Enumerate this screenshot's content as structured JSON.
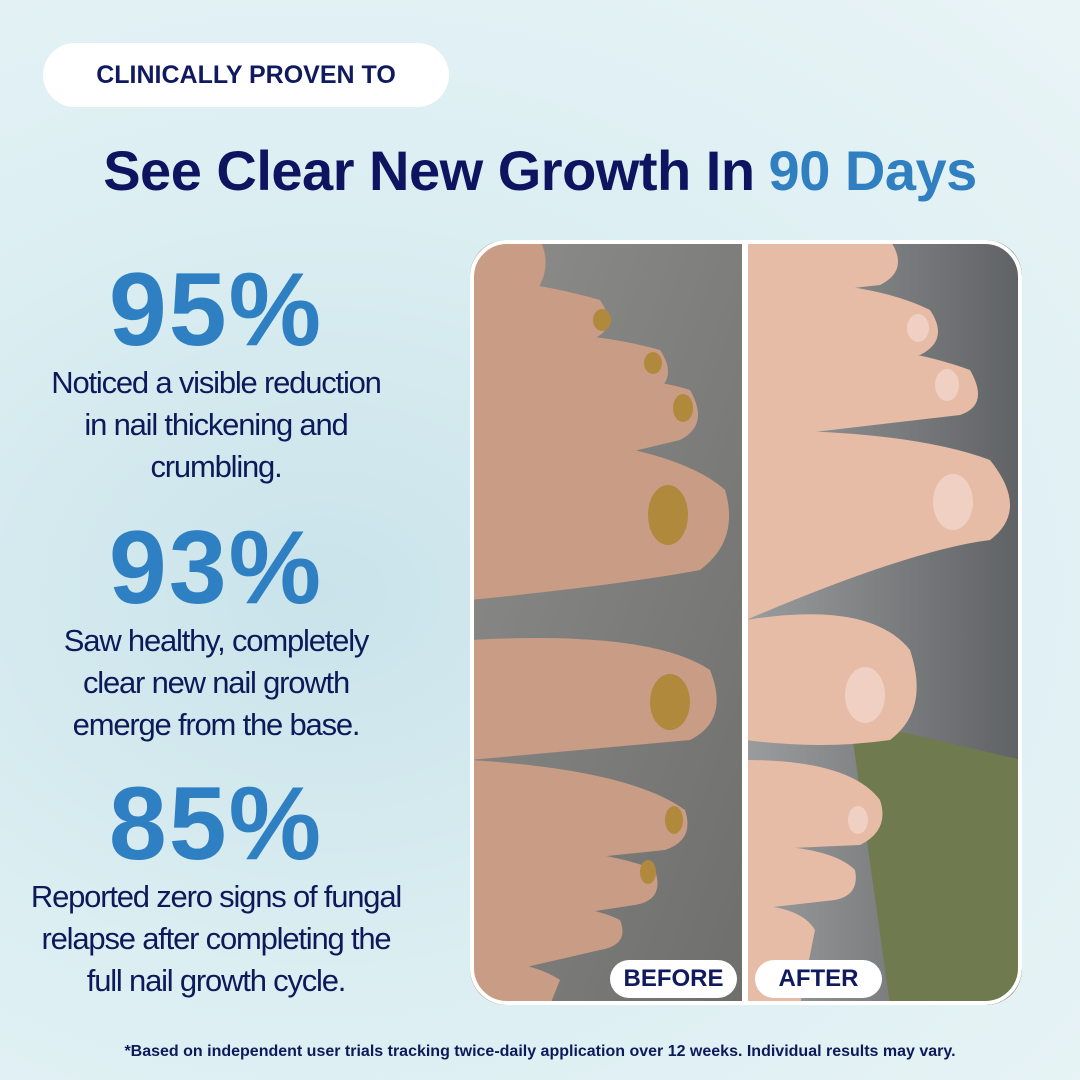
{
  "badge": "CLINICALLY PROVEN TO",
  "headline": {
    "text": "See Clear New Growth In",
    "accent": "90 Days"
  },
  "stats": [
    {
      "value": "95%",
      "lines": [
        "Noticed a visible reduction",
        "in nail thickening and",
        "crumbling."
      ]
    },
    {
      "value": "93%",
      "lines": [
        "Saw healthy, completely",
        "clear new nail growth",
        "emerge from the base."
      ]
    },
    {
      "value": "85%",
      "lines": [
        "Reported zero signs of fungal",
        "relapse after completing the",
        "full nail growth cycle."
      ]
    }
  ],
  "photo_labels": {
    "before": "BEFORE",
    "after": "AFTER"
  },
  "footnote": "*Based on independent user trials tracking twice-daily application over 12 weeks. Individual results may vary."
}
